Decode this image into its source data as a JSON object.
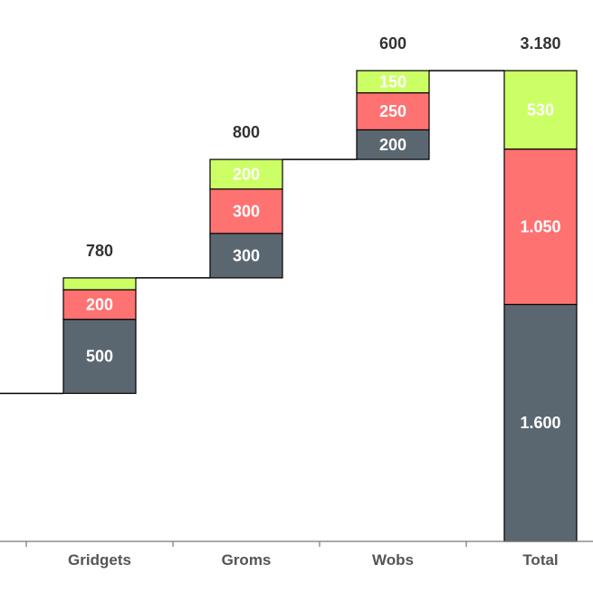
{
  "chart_data": {
    "type": "waterfall-stacked-bar",
    "title": "",
    "xlabel": "",
    "ylabel": "",
    "categories": [
      "Gridgets",
      "Groms",
      "Wobs",
      "Total"
    ],
    "series_colors": [
      "#5b6770",
      "#ff7272",
      "#ccff66"
    ],
    "bars": [
      {
        "category": "Gridgets",
        "base": 1000,
        "segments": [
          {
            "value": 500,
            "label": "500",
            "color": "#5b6770"
          },
          {
            "value": 200,
            "label": "200",
            "color": "#ff7272"
          },
          {
            "value": 80,
            "label": "",
            "color": "#ccff66"
          }
        ],
        "total_label": "780"
      },
      {
        "category": "Groms",
        "base": 1780,
        "segments": [
          {
            "value": 300,
            "label": "300",
            "color": "#5b6770"
          },
          {
            "value": 300,
            "label": "300",
            "color": "#ff7272"
          },
          {
            "value": 200,
            "label": "200",
            "color": "#ccff66"
          }
        ],
        "total_label": "800"
      },
      {
        "category": "Wobs",
        "base": 2580,
        "segments": [
          {
            "value": 200,
            "label": "200",
            "color": "#5b6770"
          },
          {
            "value": 250,
            "label": "250",
            "color": "#ff7272"
          },
          {
            "value": 150,
            "label": "150",
            "color": "#ccff66"
          }
        ],
        "total_label": "600"
      },
      {
        "category": "Total",
        "base": 0,
        "segments": [
          {
            "value": 1600,
            "label": "1.600",
            "color": "#5b6770"
          },
          {
            "value": 1050,
            "label": "1.050",
            "color": "#ff7272"
          },
          {
            "value": 530,
            "label": "530",
            "color": "#ccff66"
          }
        ],
        "total_label": "3.180"
      }
    ],
    "ylim": [
      0,
      3180
    ],
    "grid": false,
    "legend": "none"
  }
}
